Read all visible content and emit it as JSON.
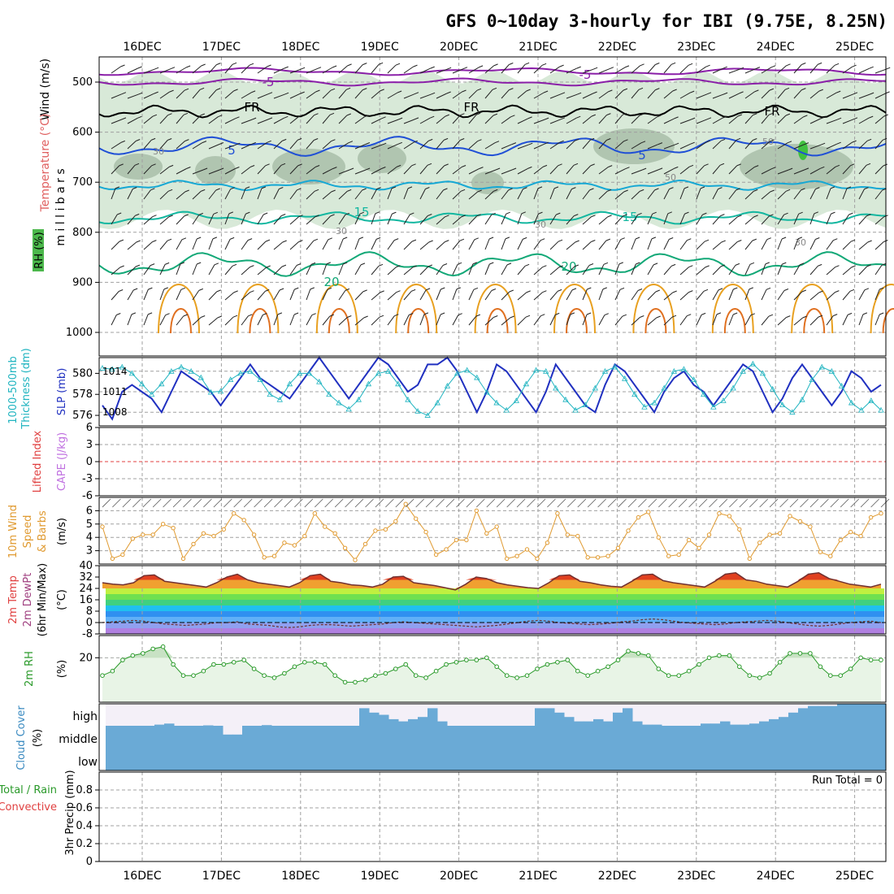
{
  "title": "GFS 0~10day 3-hourly for IBI (9.75E, 8.25N)",
  "dates": [
    "16DEC",
    "17DEC",
    "18DEC",
    "19DEC",
    "20DEC",
    "21DEC",
    "22DEC",
    "23DEC",
    "24DEC",
    "25DEC"
  ],
  "colors": {
    "rh_fill": "#c8e0c8",
    "rh_dark": "#9fb59f",
    "temp_purple": "#8a1fa8",
    "temp_blue": "#1f4fd6",
    "temp_cyan": "#16a8d4",
    "temp_teal": "#13b7a0",
    "temp_green": "#12a877",
    "temp_orange": "#e8a020",
    "slp": "#2030c0",
    "thickness": "#20b4c0",
    "wind10": "#e09a30",
    "rh2m": "#2a9a2a",
    "cloud": "#6aaad6",
    "grid": "#a0a0a0"
  },
  "panels": {
    "upper": {
      "labels": [
        "Wind (m/s)",
        "Temperature (°C)",
        "RH (%)"
      ],
      "axis_title": "m i l l i b a r s",
      "y_ticks": [
        "500",
        "600",
        "700",
        "800",
        "900",
        "1000"
      ],
      "contour_labels": [
        "-5",
        "-5",
        "FR",
        "FR",
        "FR",
        "5",
        "5",
        "15",
        "15",
        "20",
        "20",
        "30",
        "30",
        "30",
        "30",
        "50",
        "50"
      ]
    },
    "slp": {
      "labels": [
        "1000-500mb",
        "Thickness (dm)",
        "SLP (mb)"
      ],
      "left_ticks": [
        "580",
        "578",
        "576"
      ],
      "right_ticks": [
        "1014",
        "1011",
        "1008"
      ]
    },
    "cape": {
      "labels": [
        "Lifted Index",
        "CAPE (J/kg)"
      ],
      "y_ticks": [
        "6",
        "3",
        "0",
        "-3",
        "-6"
      ]
    },
    "wind10": {
      "labels": [
        "10m Wind",
        "Speed",
        "& Barbs",
        "(m/s)"
      ],
      "y_ticks": [
        "6",
        "5",
        "4",
        "3"
      ]
    },
    "temp2m": {
      "labels": [
        "2m Temp",
        "2m DewPt",
        "(6hr Min/Max)",
        "(°C)"
      ],
      "y_ticks": [
        "40",
        "32",
        "24",
        "16",
        "8",
        "0",
        "-8"
      ]
    },
    "rh2m": {
      "labels": [
        "2m RH",
        "(%)"
      ],
      "y_ticks": [
        "20"
      ]
    },
    "cloud": {
      "labels": [
        "Cloud Cover",
        "(%)"
      ],
      "levels": [
        "high",
        "middle",
        "low"
      ]
    },
    "precip": {
      "labels": [
        "Total / Rain",
        "Convective",
        "3hr Precip (mm)"
      ],
      "y_ticks": [
        "0.8",
        "0.6",
        "0.4",
        "0.2",
        "0"
      ],
      "run_total": "Run Total = 0"
    }
  },
  "chart_data": [
    {
      "type": "line",
      "title": "1000-500mb Thickness (dm) / SLP (mb)",
      "x_days_ticks": [
        "16DEC",
        "17DEC",
        "18DEC",
        "19DEC",
        "20DEC",
        "21DEC",
        "22DEC",
        "23DEC",
        "24DEC",
        "25DEC"
      ],
      "series": [
        {
          "name": "SLP (mb)",
          "values": [
            1009,
            1007,
            1011,
            1012,
            1011,
            1010,
            1008,
            1011,
            1014,
            1013,
            1012,
            1011,
            1009,
            1011,
            1013,
            1015,
            1013,
            1012,
            1011,
            1010,
            1012,
            1014,
            1016,
            1014,
            1012,
            1010,
            1012,
            1014,
            1016,
            1015,
            1013,
            1011,
            1012,
            1015,
            1015,
            1016,
            1014,
            1011,
            1008,
            1011,
            1015,
            1014,
            1012,
            1010,
            1008,
            1011,
            1015,
            1013,
            1011,
            1009,
            1008,
            1012,
            1015,
            1014,
            1012,
            1010,
            1008,
            1011,
            1013,
            1014,
            1012,
            1011,
            1009,
            1011,
            1013,
            1015,
            1014,
            1011,
            1008,
            1010,
            1013,
            1015,
            1013,
            1011,
            1009,
            1011,
            1014,
            1013,
            1011,
            1012
          ]
        },
        {
          "name": "1000-500mb Thickness (dm)",
          "values": [
            580.5,
            580.4,
            580.6,
            580,
            579,
            578,
            579,
            580.2,
            580.6,
            580.2,
            579.6,
            578.2,
            578.3,
            579.4,
            580,
            580.2,
            579.4,
            578,
            577.5,
            579,
            580,
            580,
            579.2,
            578,
            577.2,
            576.6,
            577.5,
            579,
            580,
            580.2,
            579,
            577.5,
            576.4,
            576,
            577.2,
            578.8,
            580,
            580.3,
            579.6,
            578.2,
            577.2,
            576.5,
            577.4,
            579,
            580.3,
            580.2,
            578.6,
            577.5,
            576.5,
            577,
            578.6,
            580.2,
            580.6,
            579.5,
            578,
            576.8,
            577.2,
            578.6,
            580.2,
            580.4,
            579.4,
            578,
            576.8,
            577.4,
            578.6,
            580.2,
            580.9,
            580,
            578.5,
            577,
            576.3,
            577.5,
            579.4,
            580.6,
            580.2,
            578.8,
            577.2,
            576.5,
            577.4,
            576.5
          ]
        }
      ],
      "ylim_slp": [
        1006,
        1016
      ],
      "ylim_thickness": [
        575,
        581.5
      ]
    },
    {
      "type": "line",
      "title": "Lifted Index / CAPE (J/kg)",
      "series": [
        {
          "name": "Lifted Index",
          "values": [
            0
          ]
        }
      ],
      "ylim": [
        -6,
        6
      ]
    },
    {
      "type": "line",
      "title": "10m Wind Speed & Barbs (m/s)",
      "series": [
        {
          "name": "10m Wind Speed",
          "values": [
            4.8,
            2.4,
            2.7,
            3.9,
            4.2,
            4.2,
            5,
            4.7,
            2.4,
            3.5,
            4.3,
            4.1,
            4.6,
            5.8,
            5.3,
            4.2,
            2.5,
            2.6,
            3.6,
            3.4,
            4.1,
            5.8,
            4.8,
            4.3,
            3.2,
            2.3,
            3.5,
            4.5,
            4.6,
            5.2,
            6.5,
            5.4,
            4.4,
            2.7,
            3.1,
            3.8,
            3.8,
            6,
            4.3,
            4.8,
            2.4,
            2.6,
            3.1,
            2.4,
            3.6,
            5.8,
            4.2,
            4.1,
            2.5,
            2.5,
            2.6,
            3.2,
            4.5,
            5.5,
            5.9,
            4,
            2.6,
            2.7,
            3.8,
            3.2,
            4.2,
            5.8,
            5.6,
            4.6,
            2.4,
            3.6,
            4.2,
            4.3,
            5.6,
            5.2,
            4.8,
            2.9,
            2.6,
            3.8,
            4.4,
            4.1,
            5.5,
            5.8
          ]
        }
      ],
      "ylim": [
        2,
        7
      ]
    },
    {
      "type": "area",
      "title": "2m Temp / 2m DewPt (6hr Min/Max) (°C)",
      "series": [
        {
          "name": "2m Temp",
          "values": [
            28,
            27,
            26.5,
            28,
            33,
            33.5,
            29,
            28,
            27,
            26,
            25,
            28,
            32,
            34,
            30,
            28,
            27,
            26,
            25,
            28,
            33,
            34,
            29,
            28,
            26.5,
            26,
            25,
            27,
            32,
            32.5,
            28,
            27,
            26,
            24.5,
            23,
            27,
            32,
            31,
            28,
            26.5,
            25.5,
            24.5,
            24,
            28,
            33,
            33.5,
            29,
            28,
            26.5,
            25.5,
            25,
            29,
            33.5,
            34,
            29.5,
            28,
            27,
            26,
            25,
            29,
            34,
            35,
            30,
            29,
            27,
            26,
            25,
            29,
            34,
            35,
            31,
            29,
            27,
            26,
            25,
            27
          ]
        },
        {
          "name": "2m DewPt",
          "values": [
            0,
            0.5,
            1,
            1.5,
            1,
            0,
            -1,
            -1.5,
            -2,
            -1.5,
            -1,
            0,
            0,
            0.5,
            -1,
            -1.5,
            -2,
            -3,
            -3.5,
            -3,
            -2,
            -1.5,
            -1.5,
            -2,
            -2.5,
            -2,
            -1.5,
            -1,
            0,
            0.5,
            0,
            -0.5,
            -1,
            -1.5,
            -2,
            -2.5,
            -3,
            -2.5,
            -2,
            -1,
            0,
            1,
            1.5,
            1,
            0,
            -0.5,
            -1,
            -1.5,
            -1,
            -0.5,
            0.5,
            1,
            2,
            2.5,
            2,
            1,
            0,
            -0.5,
            -1,
            -1.5,
            -1,
            0,
            0.5,
            1,
            1.5,
            1,
            0,
            -1,
            -2,
            -2.5,
            -2,
            -1,
            0,
            0.5,
            1,
            0
          ]
        }
      ],
      "ylim": [
        -8,
        40
      ]
    },
    {
      "type": "area",
      "title": "2m RH (%)",
      "series": [
        {
          "name": "2m RH",
          "values": [
            12,
            14,
            19,
            21,
            22,
            24,
            25,
            17,
            12,
            12,
            14,
            17,
            17,
            18,
            19,
            15,
            12,
            11,
            13,
            16,
            18,
            18,
            17,
            12,
            9,
            9,
            10,
            12,
            13,
            15,
            17,
            12,
            11,
            14,
            17,
            18,
            19,
            19,
            20,
            16,
            12,
            11,
            12,
            15,
            17,
            18,
            19,
            14,
            12,
            14,
            16,
            19,
            23,
            22,
            21,
            15,
            12,
            12,
            14,
            17,
            20,
            21,
            21,
            16,
            12,
            11,
            13,
            18,
            22,
            22,
            22,
            16,
            12,
            12,
            15,
            20,
            19,
            19
          ]
        }
      ],
      "ylim": [
        0,
        30
      ]
    },
    {
      "type": "bar",
      "title": "Cloud Cover (%)",
      "series": [
        {
          "name": "high",
          "values": [
            0,
            0,
            0,
            0,
            0,
            5,
            10,
            0,
            0,
            0,
            2,
            0,
            0,
            0,
            0,
            0,
            3,
            0,
            0,
            0,
            0,
            0,
            0,
            0,
            0,
            0,
            80,
            60,
            50,
            30,
            20,
            30,
            40,
            80,
            20,
            0,
            0,
            0,
            0,
            0,
            0,
            0,
            0,
            0,
            80,
            80,
            60,
            40,
            20,
            20,
            30,
            20,
            60,
            80,
            20,
            5,
            5,
            0,
            0,
            0,
            0,
            10,
            10,
            20,
            5,
            5,
            10,
            20,
            30,
            40,
            60,
            80,
            90,
            90,
            90,
            100,
            100,
            100,
            100,
            100
          ]
        },
        {
          "name": "middle",
          "values": [
            100,
            100,
            100,
            100,
            100,
            100,
            100,
            100,
            100,
            100,
            100,
            100,
            60,
            60,
            100,
            100,
            100,
            100,
            100,
            100,
            100,
            100,
            100,
            100,
            100,
            100,
            100,
            100,
            100,
            100,
            100,
            100,
            100,
            100,
            100,
            100,
            100,
            100,
            100,
            100,
            100,
            100,
            100,
            100,
            100,
            100,
            100,
            100,
            100,
            100,
            100,
            100,
            100,
            100,
            100,
            100,
            100,
            100,
            100,
            100,
            100,
            100,
            100,
            100,
            100,
            100,
            100,
            100,
            100,
            100,
            100,
            100,
            100,
            100,
            100,
            100,
            100,
            100,
            100,
            100
          ]
        },
        {
          "name": "low",
          "values": [
            100,
            100,
            100,
            100,
            100,
            100,
            100,
            100,
            100,
            100,
            100,
            100,
            100,
            100,
            100,
            100,
            100,
            100,
            100,
            100,
            100,
            100,
            100,
            100,
            100,
            100,
            100,
            100,
            100,
            100,
            100,
            100,
            100,
            100,
            100,
            100,
            100,
            100,
            100,
            100,
            100,
            100,
            100,
            100,
            100,
            100,
            100,
            100,
            100,
            100,
            100,
            100,
            100,
            100,
            100,
            100,
            100,
            100,
            100,
            100,
            100,
            100,
            100,
            100,
            100,
            100,
            100,
            100,
            100,
            100,
            100,
            100,
            100,
            100,
            100,
            100,
            100,
            100,
            100,
            100
          ]
        }
      ],
      "ylim": [
        0,
        100
      ]
    },
    {
      "type": "bar",
      "title": "3hr Precip (mm)",
      "series": [
        {
          "name": "3hr Precip",
          "values": [
            0
          ]
        }
      ],
      "ylim": [
        0,
        1
      ]
    }
  ]
}
